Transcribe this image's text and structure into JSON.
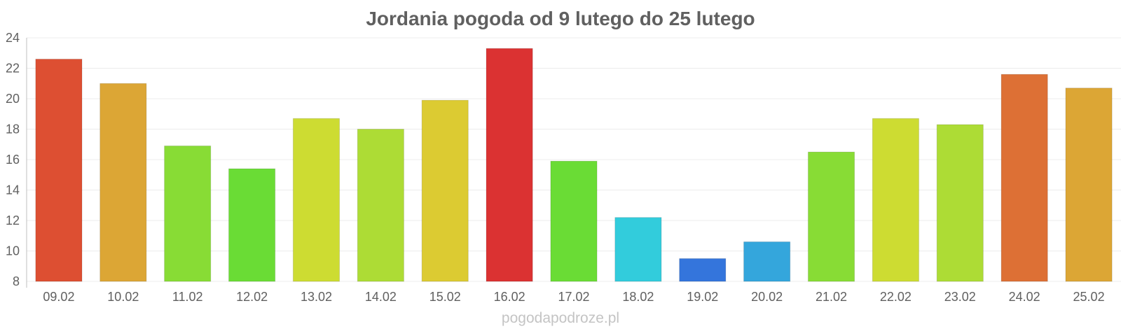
{
  "chart_data": {
    "type": "bar",
    "title": "Jordania pogoda od 9 lutego do 25 lutego",
    "xlabel": "",
    "ylabel": "",
    "categories": [
      "09.02",
      "10.02",
      "11.02",
      "12.02",
      "13.02",
      "14.02",
      "15.02",
      "16.02",
      "17.02",
      "18.02",
      "19.02",
      "20.02",
      "21.02",
      "22.02",
      "23.02",
      "24.02",
      "25.02"
    ],
    "values": [
      22.6,
      21.0,
      16.9,
      15.4,
      18.7,
      18.0,
      19.9,
      23.3,
      15.9,
      12.2,
      9.5,
      10.6,
      16.5,
      18.7,
      18.3,
      21.6,
      20.7
    ],
    "colors": [
      "#dd4f32",
      "#dca635",
      "#88dc35",
      "#6adc35",
      "#cddc32",
      "#addc35",
      "#dccb32",
      "#db3232",
      "#6adc35",
      "#32ccdc",
      "#3475dc",
      "#34a6dc",
      "#88dc35",
      "#cddc32",
      "#addc35",
      "#dd7035",
      "#dca635"
    ],
    "ylim": [
      8,
      24
    ],
    "yticks": [
      8,
      10,
      12,
      14,
      16,
      18,
      20,
      22,
      24
    ],
    "grid": true,
    "legend": "none"
  },
  "footer": {
    "watermark": "pogodapodroze.pl"
  }
}
